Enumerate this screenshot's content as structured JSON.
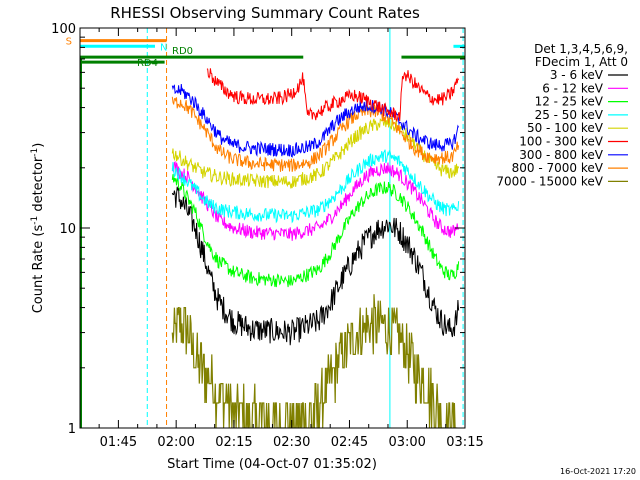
{
  "chart_data": {
    "type": "line",
    "title": "RHESSI Observing Summary Count Rates",
    "xlabel": "Start Time (04-Oct-07 01:35:02)",
    "ylabel_main": "Count Rate (s",
    "ylabel_sup1": "-1",
    "ylabel_mid": " detector",
    "ylabel_sup2": "-1",
    "ylabel_end": ")",
    "footer": "16-Oct-2021 17:20",
    "yscale": "log",
    "ylim": [
      1,
      100
    ],
    "xlim_minutes": [
      95.03,
      195.0
    ],
    "xticks": [
      {
        "m": 105,
        "label": "01:45"
      },
      {
        "m": 120,
        "label": "02:00"
      },
      {
        "m": 135,
        "label": "02:15"
      },
      {
        "m": 150,
        "label": "02:30"
      },
      {
        "m": 165,
        "label": "02:45"
      },
      {
        "m": 180,
        "label": "03:00"
      },
      {
        "m": 195,
        "label": "03:15"
      }
    ],
    "yticks": [
      {
        "v": 1,
        "label": "1"
      },
      {
        "v": 10,
        "label": "10"
      },
      {
        "v": 100,
        "label": "100"
      }
    ],
    "legend_header": [
      "Det 1,3,4,5,6,9,",
      "FDecim 1, Att 0"
    ],
    "legend_placement": "right",
    "series": [
      {
        "name": "3 - 6 keV",
        "color": "#000000",
        "points": [
          [
            119,
            15
          ],
          [
            121,
            14
          ],
          [
            123,
            12
          ],
          [
            125,
            10
          ],
          [
            127,
            7.5
          ],
          [
            129,
            5.5
          ],
          [
            131,
            4.3
          ],
          [
            133,
            3.8
          ],
          [
            135,
            3.4
          ],
          [
            140,
            3.1
          ],
          [
            150,
            3.0
          ],
          [
            157,
            3.4
          ],
          [
            160,
            4.2
          ],
          [
            163,
            5.5
          ],
          [
            166,
            7.0
          ],
          [
            169,
            8.5
          ],
          [
            172,
            9.8
          ],
          [
            175,
            10.5
          ],
          [
            178,
            9.6
          ],
          [
            181,
            7.8
          ],
          [
            184,
            5.8
          ],
          [
            187,
            4.0
          ],
          [
            189,
            3.4
          ],
          [
            191,
            3.1
          ],
          [
            192,
            3.2
          ],
          [
            193,
            3.6
          ],
          [
            193.5,
            4.2
          ]
        ]
      },
      {
        "name": "6 - 12 keV",
        "color": "#ff00ff",
        "points": [
          [
            119,
            21
          ],
          [
            121,
            19
          ],
          [
            123,
            18
          ],
          [
            125,
            16
          ],
          [
            127,
            14
          ],
          [
            129,
            12.5
          ],
          [
            131,
            11
          ],
          [
            133,
            10.5
          ],
          [
            135,
            10
          ],
          [
            140,
            9.5
          ],
          [
            150,
            9.3
          ],
          [
            157,
            10
          ],
          [
            160,
            11.2
          ],
          [
            163,
            13
          ],
          [
            166,
            15.5
          ],
          [
            169,
            18
          ],
          [
            172,
            19.5
          ],
          [
            175,
            20
          ],
          [
            178,
            18.5
          ],
          [
            181,
            16
          ],
          [
            184,
            13.5
          ],
          [
            187,
            11
          ],
          [
            189,
            10
          ],
          [
            191,
            9.6
          ],
          [
            192,
            9.6
          ],
          [
            193,
            10
          ],
          [
            193.5,
            11
          ]
        ]
      },
      {
        "name": "12 - 25 keV",
        "color": "#00ff00",
        "points": [
          [
            119,
            18
          ],
          [
            121,
            16.5
          ],
          [
            123,
            14
          ],
          [
            125,
            12
          ],
          [
            127,
            9.5
          ],
          [
            129,
            7.8
          ],
          [
            131,
            6.8
          ],
          [
            133,
            6.4
          ],
          [
            135,
            6.0
          ],
          [
            140,
            5.6
          ],
          [
            150,
            5.4
          ],
          [
            157,
            6.2
          ],
          [
            160,
            7.5
          ],
          [
            163,
            9.5
          ],
          [
            166,
            12
          ],
          [
            169,
            14
          ],
          [
            172,
            15.5
          ],
          [
            175,
            16
          ],
          [
            178,
            14.5
          ],
          [
            181,
            12
          ],
          [
            184,
            9.6
          ],
          [
            187,
            7.2
          ],
          [
            189,
            6.2
          ],
          [
            191,
            5.8
          ],
          [
            192,
            5.8
          ],
          [
            193,
            6.3
          ],
          [
            193.5,
            7
          ]
        ]
      },
      {
        "name": "25 - 50 keV",
        "color": "#00ffff",
        "points": [
          [
            119,
            20
          ],
          [
            121,
            18.5
          ],
          [
            123,
            17
          ],
          [
            125,
            15.5
          ],
          [
            127,
            14
          ],
          [
            129,
            13
          ],
          [
            131,
            12.5
          ],
          [
            133,
            12.2
          ],
          [
            135,
            12
          ],
          [
            140,
            11.7
          ],
          [
            150,
            11.5
          ],
          [
            157,
            12.3
          ],
          [
            160,
            13.8
          ],
          [
            163,
            15.8
          ],
          [
            166,
            18.5
          ],
          [
            169,
            21
          ],
          [
            172,
            22.5
          ],
          [
            175,
            23
          ],
          [
            178,
            21.5
          ],
          [
            181,
            18.5
          ],
          [
            184,
            15.8
          ],
          [
            187,
            13.5
          ],
          [
            189,
            12.6
          ],
          [
            191,
            12.2
          ],
          [
            192,
            12.3
          ],
          [
            193,
            12.8
          ],
          [
            193.5,
            13.5
          ]
        ]
      },
      {
        "name": "50 - 100 keV",
        "color": "#d4d400",
        "points": [
          [
            119,
            24
          ],
          [
            121,
            22.5
          ],
          [
            123,
            21
          ],
          [
            125,
            20
          ],
          [
            127,
            19
          ],
          [
            129,
            18.5
          ],
          [
            131,
            18
          ],
          [
            133,
            17.7
          ],
          [
            135,
            17.5
          ],
          [
            140,
            17.2
          ],
          [
            150,
            17
          ],
          [
            157,
            18.5
          ],
          [
            160,
            21
          ],
          [
            163,
            24
          ],
          [
            166,
            28
          ],
          [
            169,
            31
          ],
          [
            172,
            33
          ],
          [
            175,
            33.5
          ],
          [
            178,
            31.5
          ],
          [
            181,
            27.5
          ],
          [
            184,
            23.5
          ],
          [
            187,
            20.5
          ],
          [
            189,
            19.5
          ],
          [
            191,
            19
          ],
          [
            192,
            19
          ],
          [
            193,
            19.8
          ],
          [
            193.5,
            21
          ]
        ]
      },
      {
        "name": "100 - 300 keV",
        "color": "#ff0000",
        "points": [
          [
            128,
            62
          ],
          [
            130,
            55
          ],
          [
            132,
            50
          ],
          [
            134,
            47
          ],
          [
            136,
            45
          ],
          [
            140,
            44
          ],
          [
            145,
            44
          ],
          [
            148,
            45
          ],
          [
            150,
            47
          ],
          [
            152,
            52
          ],
          [
            153,
            56
          ],
          [
            154,
            36
          ],
          [
            157,
            38
          ],
          [
            160,
            41
          ],
          [
            163,
            44
          ],
          [
            166,
            46
          ],
          [
            169,
            44
          ],
          [
            172,
            41
          ],
          [
            175,
            38
          ],
          [
            177,
            37
          ],
          [
            178,
            36
          ],
          [
            179,
            60
          ],
          [
            181,
            55
          ],
          [
            183,
            50
          ],
          [
            185,
            46
          ],
          [
            187,
            44
          ],
          [
            189,
            44
          ],
          [
            191,
            46
          ],
          [
            192,
            49
          ],
          [
            193,
            54
          ],
          [
            193.5,
            58
          ]
        ]
      },
      {
        "name": "300 - 800 keV",
        "color": "#0000ff",
        "points": [
          [
            119,
            48
          ],
          [
            121,
            49
          ],
          [
            123,
            46
          ],
          [
            125,
            42
          ],
          [
            127,
            37
          ],
          [
            129,
            33
          ],
          [
            131,
            29
          ],
          [
            133,
            27
          ],
          [
            135,
            26
          ],
          [
            140,
            25
          ],
          [
            150,
            24.5
          ],
          [
            155,
            25.5
          ],
          [
            158,
            28
          ],
          [
            161,
            33
          ],
          [
            164,
            37
          ],
          [
            167,
            40
          ],
          [
            170,
            41
          ],
          [
            173,
            40
          ],
          [
            176,
            37
          ],
          [
            179,
            33
          ],
          [
            182,
            29
          ],
          [
            185,
            27
          ],
          [
            187,
            26
          ],
          [
            189,
            26
          ],
          [
            191,
            26
          ],
          [
            192,
            27
          ],
          [
            193,
            30
          ],
          [
            193.5,
            33
          ]
        ]
      },
      {
        "name": "800 - 7000 keV",
        "color": "#ff8000",
        "points": [
          [
            119,
            42
          ],
          [
            121,
            43
          ],
          [
            123,
            40
          ],
          [
            125,
            36
          ],
          [
            127,
            32
          ],
          [
            129,
            28
          ],
          [
            131,
            24.5
          ],
          [
            133,
            23
          ],
          [
            135,
            22
          ],
          [
            140,
            21
          ],
          [
            150,
            20.5
          ],
          [
            155,
            21.5
          ],
          [
            158,
            24
          ],
          [
            161,
            28
          ],
          [
            164,
            33
          ],
          [
            167,
            37
          ],
          [
            170,
            38.5
          ],
          [
            173,
            37.5
          ],
          [
            176,
            34
          ],
          [
            179,
            29
          ],
          [
            182,
            25
          ],
          [
            185,
            23
          ],
          [
            187,
            22.5
          ],
          [
            189,
            22.5
          ],
          [
            191,
            22.5
          ],
          [
            192,
            23
          ],
          [
            193,
            25
          ],
          [
            193.5,
            27
          ]
        ]
      },
      {
        "name": "7000 - 15000 keV",
        "color": "#808000",
        "points": [
          [
            119,
            2.8
          ],
          [
            121,
            3.4
          ],
          [
            123,
            3.1
          ],
          [
            125,
            2.2
          ],
          [
            127,
            2.0
          ],
          [
            129,
            1.7
          ],
          [
            131,
            1.5
          ],
          [
            133,
            1.4
          ],
          [
            135,
            1.2
          ],
          [
            140,
            1.1
          ],
          [
            150,
            1.05
          ],
          [
            157,
            1.25
          ],
          [
            160,
            1.7
          ],
          [
            163,
            2.3
          ],
          [
            166,
            2.8
          ],
          [
            169,
            3.2
          ],
          [
            172,
            3.3
          ],
          [
            175,
            3.2
          ],
          [
            178,
            2.8
          ],
          [
            181,
            2.2
          ],
          [
            184,
            1.7
          ],
          [
            187,
            1.3
          ],
          [
            189,
            1.15
          ],
          [
            191,
            1.05
          ],
          [
            192,
            1.02
          ],
          [
            193,
            1.0
          ]
        ]
      }
    ],
    "flags": [
      {
        "label": "S",
        "color": "#ff8000",
        "value": 86.5,
        "segments": [
          [
            95.03,
            117.5
          ]
        ]
      },
      {
        "label": "N",
        "color": "#00ffff",
        "value": 81.0,
        "segments": [
          [
            95.03,
            114.5
          ],
          [
            192.0,
            195.0
          ]
        ]
      },
      {
        "label": "RD0",
        "color": "#008000",
        "value": 71.5,
        "segments": [
          [
            95.03,
            153.0
          ],
          [
            178.5,
            195.0
          ]
        ]
      },
      {
        "label": "RD4",
        "color": "#008000",
        "value": 67.5,
        "segments": [
          [
            95.03,
            117.0
          ]
        ]
      }
    ],
    "vlines": [
      {
        "m": 112.5,
        "color": "#00ffff",
        "dash": true
      },
      {
        "m": 117.5,
        "color": "#ff8000",
        "dash": true
      },
      {
        "m": 175.5,
        "color": "#00ffff",
        "dash": false
      },
      {
        "m": 194.5,
        "color": "#00ffff",
        "dash": true
      }
    ]
  }
}
